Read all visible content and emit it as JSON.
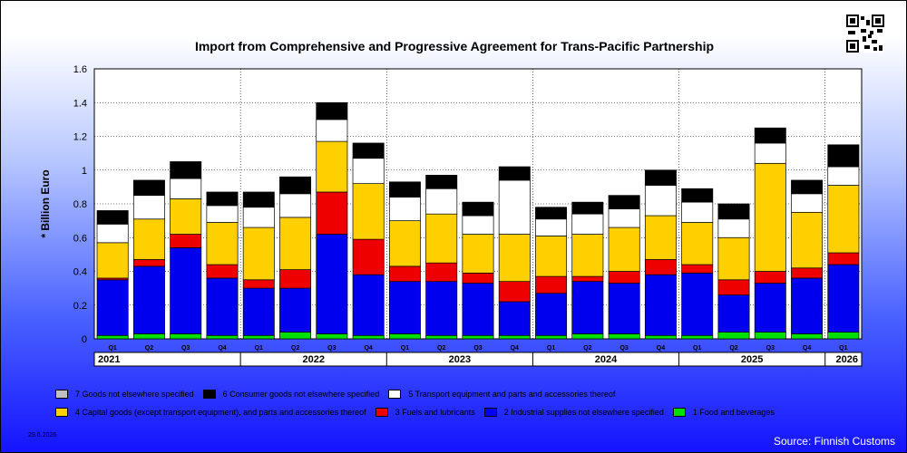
{
  "title": "Import from Comprehensive and Progressive Agreement for Trans-Pacific Partnership",
  "date": "29.6.2026",
  "source": "Source: Finnish Customs",
  "colors": {
    "grid": "#ffffff",
    "plot_bg": "#ffffff"
  },
  "chart_data": {
    "type": "bar",
    "stacked": true,
    "title": "Import from Comprehensive and Progressive Agreement for Trans-Pacific Partnership",
    "ylabel": "* Billion Euro",
    "ylim": [
      0,
      1.6
    ],
    "yticks": [
      "0",
      "0.2",
      "0.4",
      "0.6",
      "0.8",
      "1",
      "1.2",
      "1.4",
      "1.6"
    ],
    "categories": [
      "Q1",
      "Q2",
      "Q3",
      "Q4",
      "Q1",
      "Q2",
      "Q3",
      "Q4",
      "Q1",
      "Q2",
      "Q3",
      "Q4",
      "Q1",
      "Q2",
      "Q3",
      "Q4",
      "Q1",
      "Q2",
      "Q3",
      "Q4",
      "Q1"
    ],
    "years": [
      {
        "label": "2021",
        "start": 0,
        "end": 3
      },
      {
        "label": "2022",
        "start": 4,
        "end": 7
      },
      {
        "label": "2023",
        "start": 8,
        "end": 11
      },
      {
        "label": "2024",
        "start": 12,
        "end": 15
      },
      {
        "label": "2025",
        "start": 16,
        "end": 19
      },
      {
        "label": "2026",
        "start": 20,
        "end": 20
      }
    ],
    "series": [
      {
        "name": "1 Food and beverages",
        "color": "#00e000",
        "values": [
          0.02,
          0.03,
          0.03,
          0.02,
          0.02,
          0.04,
          0.03,
          0.02,
          0.03,
          0.02,
          0.02,
          0.02,
          0.02,
          0.03,
          0.03,
          0.02,
          0.02,
          0.04,
          0.04,
          0.03,
          0.04
        ]
      },
      {
        "name": "2 Industrial supplies not elsewhere specified",
        "color": "#0000ee",
        "values": [
          0.33,
          0.4,
          0.51,
          0.34,
          0.28,
          0.26,
          0.59,
          0.36,
          0.31,
          0.32,
          0.31,
          0.2,
          0.25,
          0.31,
          0.3,
          0.36,
          0.37,
          0.22,
          0.29,
          0.33,
          0.4
        ]
      },
      {
        "name": "3 Fuels and lubricants",
        "color": "#ee0000",
        "values": [
          0.01,
          0.04,
          0.08,
          0.08,
          0.05,
          0.11,
          0.25,
          0.21,
          0.09,
          0.11,
          0.06,
          0.12,
          0.1,
          0.03,
          0.07,
          0.09,
          0.05,
          0.09,
          0.07,
          0.06,
          0.07
        ]
      },
      {
        "name": "4 Capital goods (except transport equipment), and parts and accessories thereof",
        "color": "#ffd000",
        "values": [
          0.21,
          0.24,
          0.21,
          0.25,
          0.31,
          0.31,
          0.3,
          0.33,
          0.27,
          0.29,
          0.23,
          0.28,
          0.24,
          0.25,
          0.26,
          0.26,
          0.25,
          0.25,
          0.64,
          0.33,
          0.4
        ]
      },
      {
        "name": "5  Transport equipment and parts and accessories thereof",
        "color": "#ffffff",
        "values": [
          0.11,
          0.14,
          0.12,
          0.1,
          0.12,
          0.14,
          0.13,
          0.15,
          0.14,
          0.15,
          0.11,
          0.32,
          0.1,
          0.12,
          0.11,
          0.18,
          0.12,
          0.11,
          0.12,
          0.11,
          0.11
        ]
      },
      {
        "name": "6 Consumer goods not elsewhere specified",
        "color": "#000000",
        "values": [
          0.08,
          0.09,
          0.1,
          0.08,
          0.09,
          0.1,
          0.1,
          0.09,
          0.09,
          0.08,
          0.08,
          0.08,
          0.07,
          0.07,
          0.08,
          0.09,
          0.08,
          0.09,
          0.09,
          0.08,
          0.13
        ]
      },
      {
        "name": "7 Goods not elsewhere specified",
        "color": "#c0c0c0",
        "values": [
          0,
          0,
          0,
          0,
          0,
          0,
          0,
          0,
          0,
          0,
          0,
          0,
          0,
          0,
          0,
          0,
          0,
          0,
          0,
          0,
          0
        ]
      }
    ]
  },
  "legend_rows": [
    [
      {
        "label": "7 Goods not elsewhere specified",
        "color": "#c0c0c0"
      },
      {
        "label": "6 Consumer goods not elsewhere specified",
        "color": "#000000"
      },
      {
        "label": "5  Transport equipment and parts and accessories thereof",
        "color": "#ffffff"
      }
    ],
    [
      {
        "label": "4 Capital goods (except transport equipment), and parts and accessories thereof",
        "color": "#ffd000"
      },
      {
        "label": "3 Fuels and lubricants",
        "color": "#ee0000"
      },
      {
        "label": "2 Industrial supplies not elsewhere specified",
        "color": "#0000ee"
      },
      {
        "label": "1 Food and beverages",
        "color": "#00e000"
      }
    ]
  ]
}
